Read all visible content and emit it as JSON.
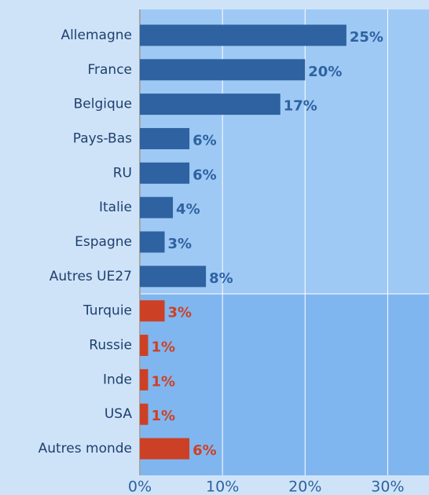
{
  "chart_data": {
    "type": "bar",
    "orientation": "horizontal",
    "categories": [
      "Allemagne",
      "France",
      "Belgique",
      "Pays-Bas",
      "RU",
      "Italie",
      "Espagne",
      "Autres UE27",
      "Turquie",
      "Russie",
      "Inde",
      "USA",
      "Autres monde"
    ],
    "values": [
      25,
      20,
      17,
      6,
      6,
      4,
      3,
      8,
      3,
      1,
      1,
      1,
      6
    ],
    "value_labels": [
      "25%",
      "20%",
      "17%",
      "6%",
      "6%",
      "4%",
      "3%",
      "8%",
      "3%",
      "1%",
      "1%",
      "1%",
      "6%"
    ],
    "colors": [
      "#2e62a0",
      "#2e62a0",
      "#2e62a0",
      "#2e62a0",
      "#2e62a0",
      "#2e62a0",
      "#2e62a0",
      "#2e62a0",
      "#cc4125",
      "#cc4125",
      "#cc4125",
      "#cc4125",
      "#cc4125"
    ],
    "xlim": [
      0,
      35
    ],
    "xticks": [
      {
        "value": 0,
        "label": "0%"
      },
      {
        "value": 10,
        "label": "10%"
      },
      {
        "value": 20,
        "label": "20%"
      },
      {
        "value": 30,
        "label": "30%"
      }
    ],
    "grid": true
  }
}
